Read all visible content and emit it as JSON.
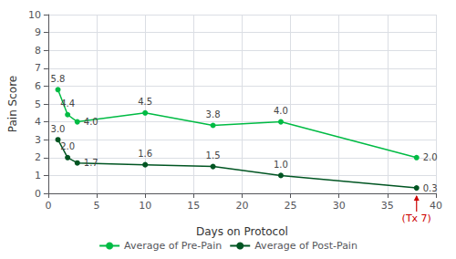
{
  "chart_data": {
    "type": "line",
    "x": [
      1,
      2,
      3,
      10,
      17,
      24,
      38
    ],
    "series": [
      {
        "name": "Average of Pre-Pain",
        "color": "#00bb44",
        "marker": "circle",
        "values": [
          5.8,
          4.4,
          4.0,
          4.5,
          3.8,
          4.0,
          2.0
        ],
        "value_labels": [
          "5.8",
          "4.4",
          "4.0",
          "4.5",
          "3.8",
          "4.0",
          "2.0"
        ]
      },
      {
        "name": "Average of Post-Pain",
        "color": "#005522",
        "marker": "circle",
        "values": [
          3.0,
          2.0,
          1.7,
          1.6,
          1.5,
          1.0,
          0.3
        ],
        "value_labels": [
          "3.0",
          "2.0",
          "1.7",
          "1.6",
          "1.5",
          "1.0",
          "0.3"
        ]
      }
    ],
    "xlabel": "Days on Protocol",
    "ylabel": "Pain Score",
    "xlim": [
      0,
      40
    ],
    "ylim": [
      0,
      10
    ],
    "xticks": [
      0,
      5,
      10,
      15,
      20,
      25,
      30,
      35,
      40
    ],
    "yticks": [
      0,
      1,
      2,
      3,
      4,
      5,
      6,
      7,
      8,
      9,
      10
    ],
    "grid": true,
    "legend": "bottom",
    "data_labels": true,
    "annotations": [
      {
        "text": "(Tx 7)",
        "x": 38,
        "color": "#cc0000"
      }
    ]
  }
}
